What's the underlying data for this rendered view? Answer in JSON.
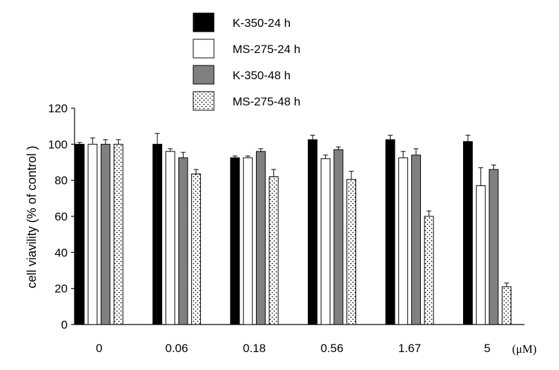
{
  "chart_data": {
    "type": "bar",
    "title": "",
    "xlabel": "",
    "x_unit": "(μM)",
    "ylabel": "cell viavility (% of control )",
    "ylim": [
      0,
      120
    ],
    "yticks": [
      0,
      20,
      40,
      60,
      80,
      100,
      120
    ],
    "grid": false,
    "legend_position": "top-center",
    "categories": [
      "0",
      "0.06",
      "0.18",
      "0.56",
      "1.67",
      "5"
    ],
    "series": [
      {
        "name": "K-350-24 h",
        "fill": "#000000",
        "pattern": "solid",
        "values": [
          100,
          100,
          92.5,
          102.5,
          102.5,
          101.5
        ],
        "errors": [
          1,
          6,
          1,
          2.5,
          2.5,
          3.5
        ]
      },
      {
        "name": "MS-275-24 h",
        "fill": "#ffffff",
        "pattern": "solid",
        "values": [
          100,
          96,
          92.5,
          92,
          92.5,
          77
        ],
        "errors": [
          3.5,
          1.5,
          1,
          2,
          3.5,
          10
        ]
      },
      {
        "name": "K-350-48 h",
        "fill": "#808080",
        "pattern": "solid",
        "values": [
          100,
          92.5,
          96,
          97,
          94,
          86
        ],
        "errors": [
          2.5,
          3,
          1.5,
          1.5,
          3.5,
          2.5
        ]
      },
      {
        "name": "MS-275-48 h",
        "fill": "#ffffff",
        "pattern": "dots",
        "values": [
          100,
          83.5,
          82,
          80.5,
          60,
          21
        ],
        "errors": [
          2.5,
          2.5,
          4,
          4.5,
          3,
          2
        ]
      }
    ]
  }
}
